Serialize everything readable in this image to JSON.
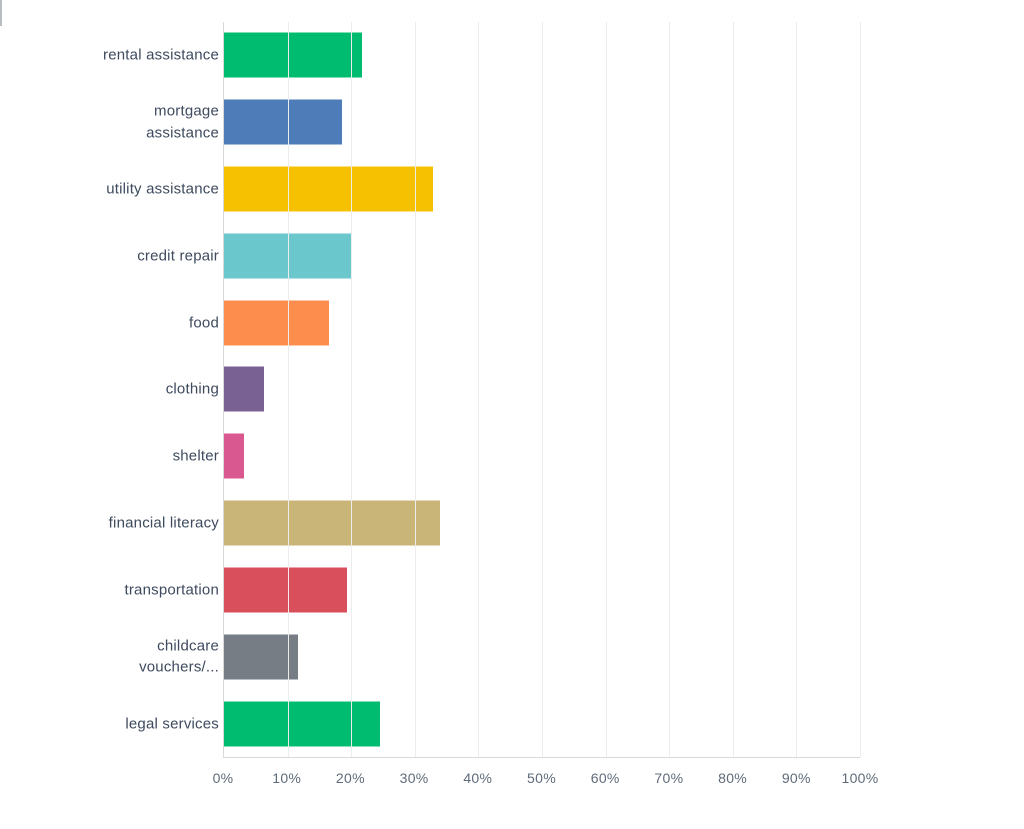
{
  "chart_data": {
    "type": "bar",
    "orientation": "horizontal",
    "title": "",
    "xlabel": "",
    "ylabel": "",
    "unit": "%",
    "xlim": [
      0,
      100
    ],
    "grid": true,
    "x_ticks": [
      "0%",
      "10%",
      "20%",
      "30%",
      "40%",
      "50%",
      "60%",
      "70%",
      "80%",
      "90%",
      "100%"
    ],
    "x_tick_values": [
      0,
      10,
      20,
      30,
      40,
      50,
      60,
      70,
      80,
      90,
      100
    ],
    "categories": [
      "rental assistance",
      "mortgage assistance",
      "utility assistance",
      "credit repair",
      "food",
      "clothing",
      "shelter",
      "financial literacy",
      "transportation",
      "childcare vouchers/...",
      "legal services"
    ],
    "values": [
      21.7,
      18.5,
      32.8,
      20.0,
      16.5,
      6.3,
      3.1,
      33.9,
      19.3,
      11.7,
      24.6
    ],
    "bar_colors": [
      "#00bc70",
      "#4d7cb8",
      "#f6c100",
      "#6ac8cc",
      "#fc8d4d",
      "#7a6194",
      "#d9588f",
      "#c8b577",
      "#d94f5c",
      "#767d84",
      "#00bc70"
    ],
    "colors": {
      "label_text": "#3e4a5e",
      "tick_text": "#5f6b7a",
      "gridline": "#ececec",
      "axis_line": "#d9d9d9",
      "background": "#ffffff"
    }
  }
}
